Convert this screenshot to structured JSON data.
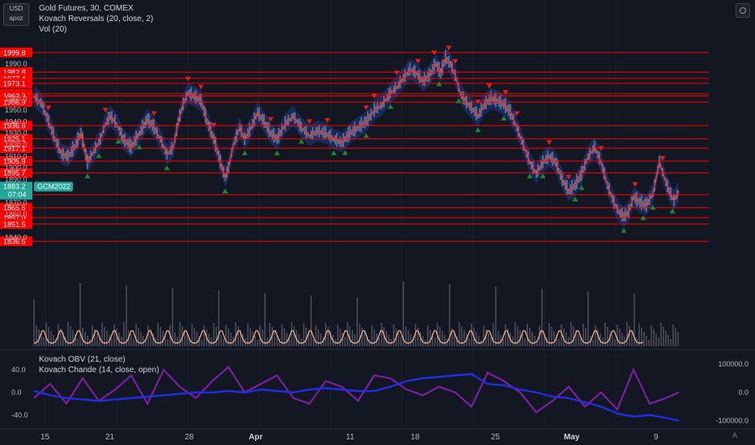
{
  "header": {
    "symbol_badge_line1": "USD",
    "symbol_badge_line2": "apoz",
    "title": "Gold Futures, 30, COMEX",
    "indicator1": "Kovach Reversals (20, close, 2)",
    "indicator2": "Vol (20)",
    "lower_indicator1": "Kovach OBV (21, close)",
    "lower_indicator2": "Kovach Chande (14, close, open)"
  },
  "x_axis_labels": [
    "15",
    "21",
    "28",
    "Apr",
    "11",
    "18",
    "25",
    "May",
    "9"
  ],
  "corner_label": "A",
  "colors": {
    "background": "#131722",
    "level_line": "#ff0000",
    "up_marker": "#1b8a2f",
    "down_marker": "#e21b1b",
    "price_candles": "#9aa4b2",
    "band": "#1d3a8a",
    "moving_average": "#e03c3c",
    "volume_oscillator": "#f7b79a",
    "obv": "#1f2fe0",
    "chande": "#7b1fa2",
    "current_price": "#26a69a"
  },
  "chart_data": [
    {
      "type": "line",
      "name": "price-panel",
      "y_ticks": [
        "1990.0",
        "1960.0",
        "1950.0",
        "1940.0",
        "1930.0",
        "1920.0",
        "1910.0",
        "1900.0",
        "1890.0",
        "1870.0",
        "1860.0",
        "1840.0"
      ],
      "levels": [
        1999.8,
        1982.8,
        1977.4,
        1973.1,
        1964.1,
        1962.3,
        1956.9,
        1936.6,
        1925.1,
        1917.1,
        1905.9,
        1895.7,
        1876.9,
        1865.6,
        1857.0,
        1851.5,
        1836.6
      ],
      "level_labels": [
        "1999.8",
        "1982.8",
        "1977.4",
        "1973.1",
        "1964.1",
        "1962.3",
        "1956.9",
        "1936.6",
        "1925.1",
        "1917.1",
        "1905.9",
        "1895.7",
        "1876.9",
        "1865.6",
        "1857.0",
        "1851.5",
        "1836.6"
      ],
      "current_price": {
        "price": "1883.2",
        "countdown": "07:04",
        "label": "GCM2022",
        "value": 1883.2
      },
      "x": [
        0,
        10,
        18,
        26,
        34,
        42,
        50,
        58,
        66,
        74,
        82,
        88,
        94,
        100,
        104,
        110,
        120,
        130,
        140,
        148,
        156,
        164,
        172,
        178,
        184,
        190,
        198,
        206,
        214,
        222,
        230,
        236,
        240,
        246,
        254,
        260,
        268,
        276,
        284,
        292,
        300,
        310,
        320,
        330,
        340,
        350,
        360,
        370,
        380,
        390,
        400,
        410,
        420,
        430,
        440,
        448,
        456,
        464,
        472,
        480,
        488,
        496,
        502,
        508,
        514,
        520,
        526,
        532,
        540,
        548,
        556,
        564,
        572,
        580,
        588,
        596,
        604,
        612,
        620,
        628,
        636,
        644,
        652,
        660,
        668,
        676,
        684,
        692,
        700,
        708,
        716,
        722,
        728,
        734,
        740,
        748,
        756,
        764,
        772,
        778,
        784,
        790,
        796
      ],
      "values": [
        1962,
        1955,
        1940,
        1925,
        1912,
        1910,
        1918,
        1930,
        1905,
        1915,
        1925,
        1938,
        1945,
        1940,
        1935,
        1925,
        1918,
        1930,
        1942,
        1935,
        1925,
        1912,
        1918,
        1940,
        1955,
        1965,
        1962,
        1958,
        1940,
        1925,
        1905,
        1892,
        1900,
        1920,
        1935,
        1925,
        1935,
        1948,
        1940,
        1930,
        1925,
        1938,
        1945,
        1935,
        1928,
        1932,
        1930,
        1925,
        1922,
        1930,
        1935,
        1940,
        1950,
        1955,
        1965,
        1970,
        1978,
        1985,
        1982,
        1975,
        1980,
        1990,
        1982,
        1995,
        1990,
        1980,
        1965,
        1958,
        1952,
        1945,
        1955,
        1960,
        1958,
        1955,
        1948,
        1935,
        1920,
        1905,
        1895,
        1905,
        1910,
        1905,
        1890,
        1880,
        1885,
        1895,
        1910,
        1918,
        1905,
        1885,
        1870,
        1862,
        1858,
        1862,
        1875,
        1870,
        1868,
        1878,
        1905,
        1892,
        1880,
        1872,
        1880
      ],
      "down_markers_x": [
        18,
        88,
        148,
        190,
        206,
        222,
        292,
        340,
        362,
        410,
        420,
        448,
        474,
        494,
        512,
        520,
        548,
        562,
        582,
        596,
        636,
        660,
        700,
        742,
        776
      ],
      "up_markers_x": [
        66,
        80,
        104,
        130,
        164,
        236,
        260,
        300,
        330,
        370,
        384,
        410,
        440,
        500,
        524,
        548,
        580,
        612,
        628,
        668,
        676,
        728,
        752,
        764,
        788
      ]
    },
    {
      "type": "area",
      "name": "Vol (20)",
      "note_values": "oscillating volume average, bumps at regular sessions",
      "x": [
        0,
        8,
        12,
        16,
        20,
        24,
        28,
        32,
        36,
        40,
        44,
        48,
        52,
        56,
        60,
        64,
        68,
        72,
        76,
        80,
        84,
        88,
        92,
        96,
        100
      ],
      "values": [
        0.2,
        0.9,
        0.3,
        0.8,
        0.2,
        0.9,
        0.3,
        0.8,
        0.2,
        1.0,
        0.3,
        0.8,
        0.2,
        0.9,
        0.3,
        0.8,
        0.2,
        0.9,
        0.3,
        0.8,
        0.2,
        0.9,
        0.3,
        0.8,
        0.2
      ]
    },
    {
      "type": "line",
      "name": "lower-panel",
      "y_left_ticks": [
        "40.0",
        "0.0",
        "-40.0"
      ],
      "y_right_ticks": [
        "100000.0",
        "0.0",
        "-100000.0"
      ],
      "series": [
        {
          "name": "Kovach OBV (21, close)",
          "x": [
            0,
            20,
            40,
            60,
            80,
            100,
            120,
            140,
            160,
            180,
            200,
            220,
            240,
            260,
            280,
            300,
            320,
            340,
            360,
            380,
            400,
            420,
            440,
            460,
            480,
            500,
            520,
            540,
            560,
            580,
            600,
            620,
            640,
            660,
            680,
            700,
            720,
            740,
            760,
            780,
            796
          ],
          "values": [
            5000,
            -10000,
            -20000,
            -25000,
            -30000,
            -25000,
            -20000,
            -15000,
            -10000,
            -5000,
            0,
            0,
            5000,
            0,
            10000,
            5000,
            0,
            10000,
            15000,
            10000,
            5000,
            5000,
            20000,
            40000,
            50000,
            55000,
            60000,
            65000,
            30000,
            25000,
            10000,
            0,
            -15000,
            -20000,
            -35000,
            -50000,
            -75000,
            -85000,
            -80000,
            -90000,
            -100000
          ]
        },
        {
          "name": "Kovach Chande (14, close, open)",
          "x": [
            0,
            20,
            40,
            60,
            80,
            100,
            120,
            140,
            160,
            180,
            200,
            220,
            240,
            260,
            280,
            300,
            320,
            340,
            360,
            380,
            400,
            420,
            440,
            460,
            480,
            500,
            520,
            540,
            560,
            580,
            600,
            620,
            640,
            660,
            680,
            700,
            720,
            740,
            760,
            780,
            796
          ],
          "values": [
            -10,
            15,
            -20,
            25,
            -15,
            5,
            30,
            -20,
            40,
            10,
            -10,
            20,
            45,
            0,
            15,
            30,
            -10,
            -20,
            20,
            10,
            -15,
            30,
            25,
            5,
            -5,
            10,
            0,
            -25,
            35,
            20,
            0,
            -35,
            -15,
            10,
            -25,
            0,
            -30,
            40,
            -20,
            -10,
            0
          ]
        }
      ]
    }
  ]
}
